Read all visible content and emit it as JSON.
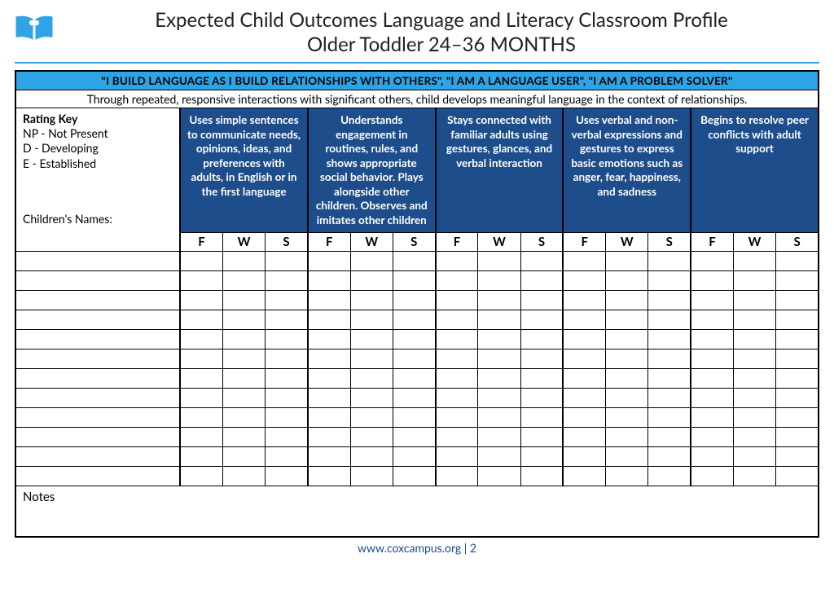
{
  "header": {
    "title_line1": "Expected Child Outcomes Language and Literacy Classroom Profile",
    "title_line2": "Older Toddler 24–36 MONTHS"
  },
  "quote_banner": "\"I BUILD LANGUAGE AS I BUILD RELATIONSHIPS WITH OTHERS\", \"I AM A LANGUAGE USER\", \"I AM A PROBLEM SOLVER\"",
  "context_text": "Through repeated, responsive interactions with significant others, child develops meaningful language in the context of relationships.",
  "rating_key": {
    "title": "Rating Key",
    "items": [
      "NP - Not Present",
      "D - Developing",
      "E - Established"
    ],
    "children_label": "Children's Names:"
  },
  "outcomes": [
    "Uses simple sentences to communicate needs, opinions, ideas, and preferences with adults, in English or in the first language",
    "Understands engagement in routines, rules, and shows appropriate social behavior. Plays alongside other children. Observes and imitates other children",
    "Stays connected with familiar adults using gestures, glances, and verbal interaction",
    "Uses verbal and non-verbal expressions and gestures to express basic emotions such as anger, fear, happiness, and sadness",
    "Begins to resolve peer conflicts with adult support"
  ],
  "sub_columns": [
    "F",
    "W",
    "S"
  ],
  "data_row_count": 12,
  "notes_label": "Notes",
  "footer": {
    "url": "www.coxcampus.org",
    "sep": " | ",
    "page": "2"
  },
  "colors": {
    "banner_bg": "#2ea4e6",
    "outcome_bg": "#1e4d8b",
    "outcome_fg": "#ffffff",
    "hr": "#2ea4e6",
    "border": "#000000",
    "footer_text": "#1e4d8b"
  },
  "layout": {
    "name_col_width_pct": 20.5,
    "sub_col_width_pct": 5.3
  }
}
